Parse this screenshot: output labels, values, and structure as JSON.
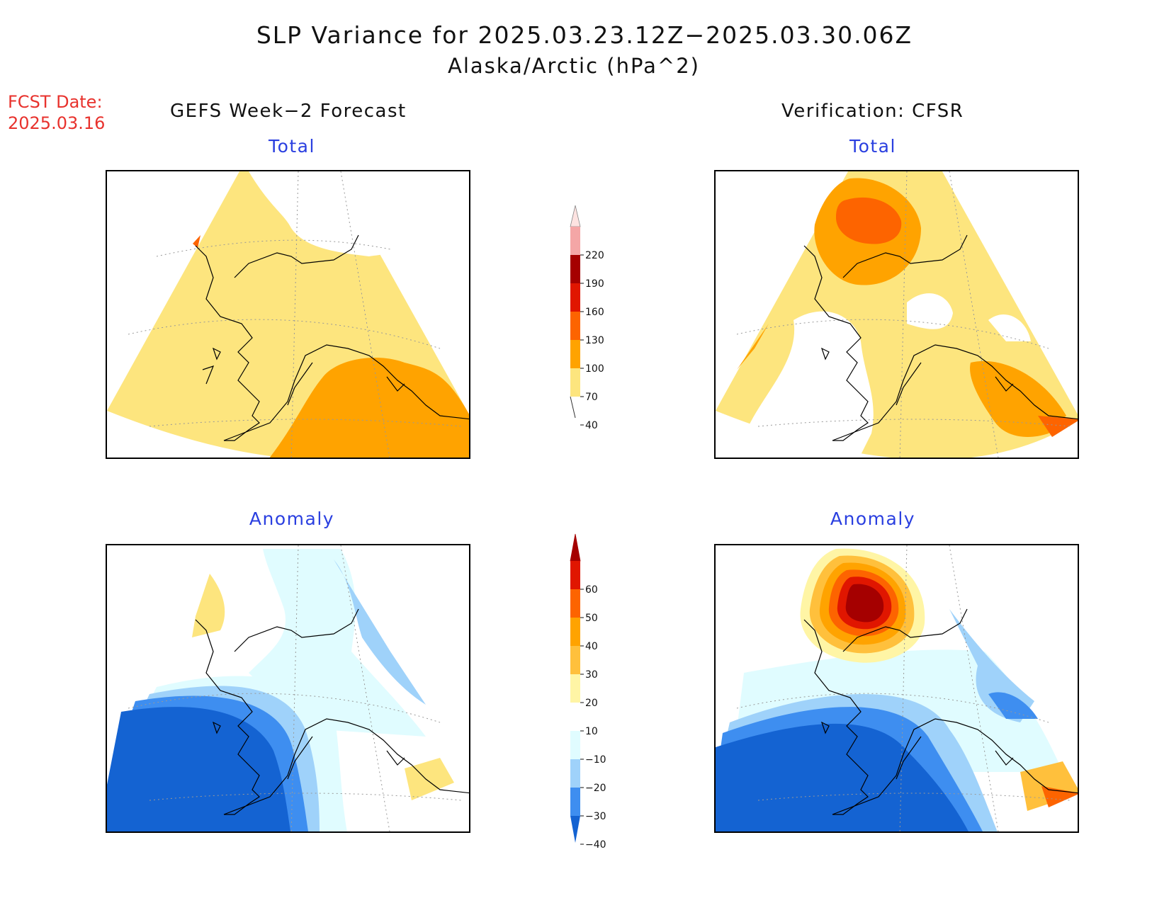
{
  "title": "SLP Variance for 2025.03.23.12Z−2025.03.30.06Z",
  "subtitle": "Alaska/Arctic (hPa^2)",
  "fcst_date": {
    "label": "FCST Date:",
    "value": "2025.03.16"
  },
  "columns": {
    "left": "GEFS Week−2 Forecast",
    "right": "Verification: CFSR"
  },
  "panels": {
    "fcst_total": "Total",
    "verif_total": "Total",
    "fcst_anomaly": "Anomaly",
    "verif_anomaly": "Anomaly"
  },
  "colorbars": {
    "total": {
      "labels": [
        "220",
        "190",
        "160",
        "130",
        "100",
        "70",
        "40"
      ],
      "colors": [
        "#fde3e1",
        "#f4a6a6",
        "#a50000",
        "#e01600",
        "#fd6400",
        "#ffa300",
        "#fde57e"
      ]
    },
    "anomaly": {
      "labels": [
        "60",
        "50",
        "40",
        "30",
        "20",
        "10",
        "−10",
        "−20",
        "−30",
        "−40"
      ],
      "colors": [
        "#a50000",
        "#e01600",
        "#fd6400",
        "#ffa300",
        "#ffc03c",
        "#fff5a5",
        "#ffffff",
        "#e0fcff",
        "#9fd2fa",
        "#3e8ef0",
        "#1463d2"
      ]
    }
  }
}
